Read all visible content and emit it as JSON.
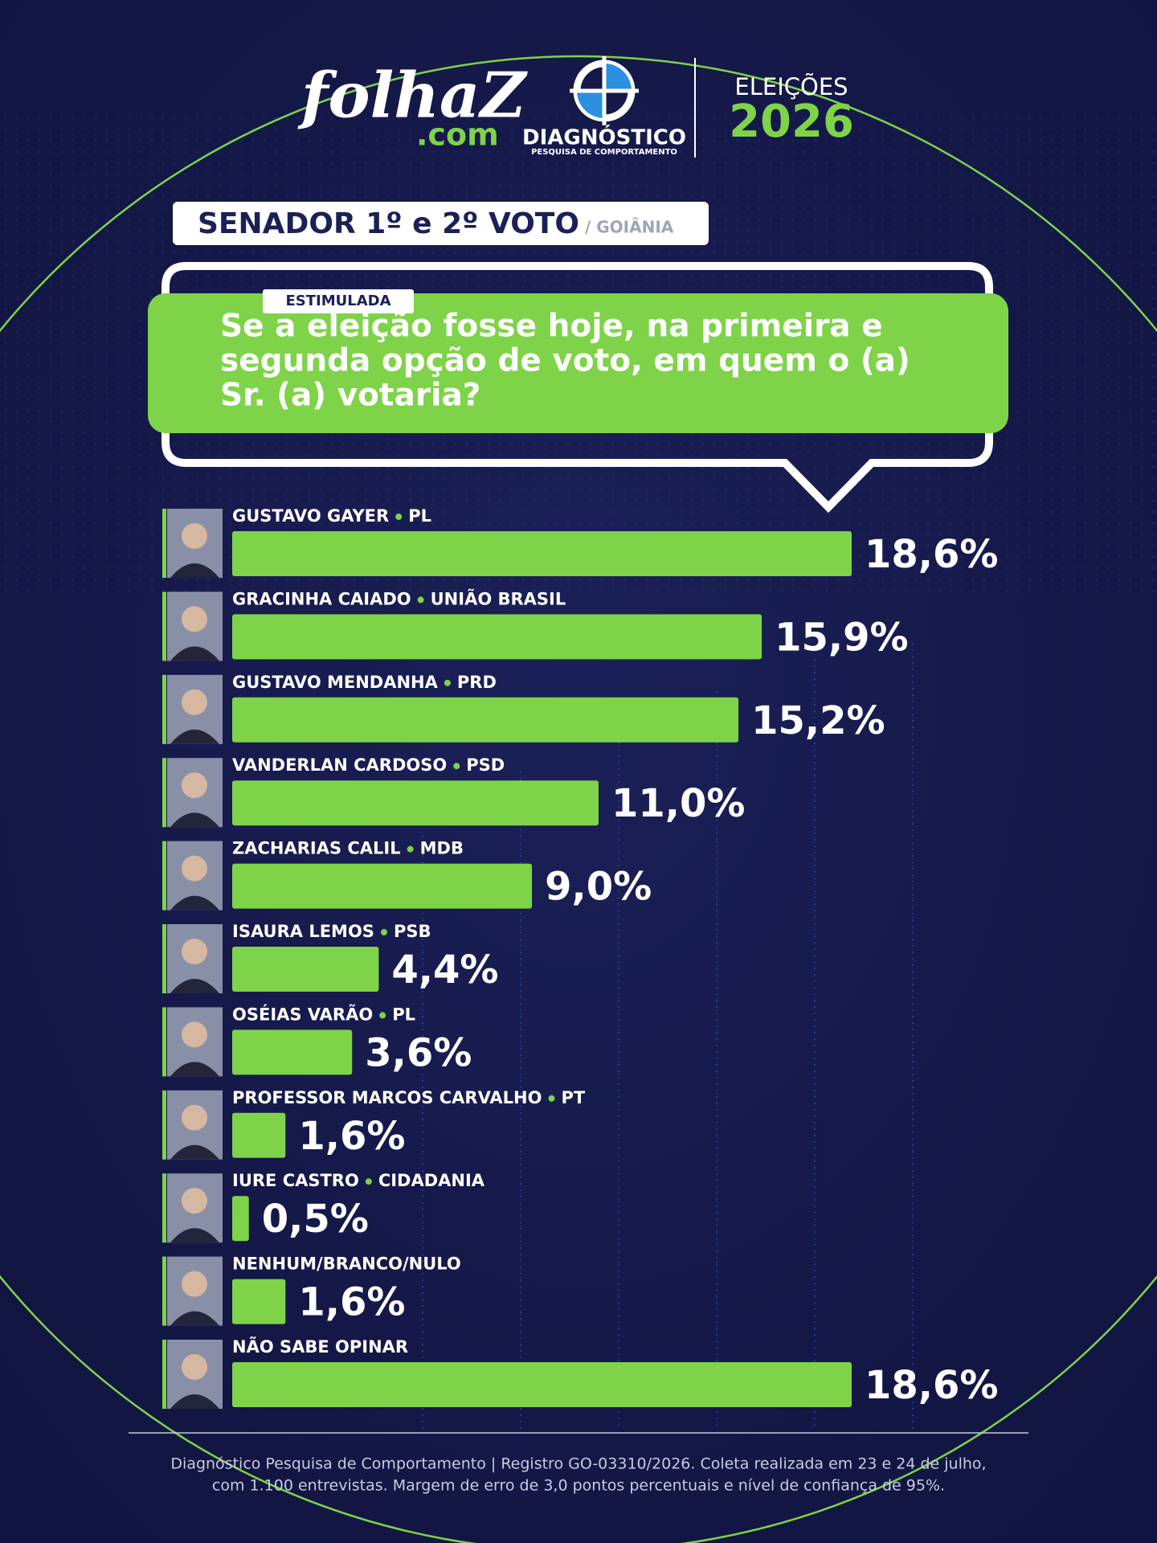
{
  "header": {
    "brand": "folhaZ",
    "brand_suffix": ".com",
    "institute": "DIAGNÓSTICO",
    "institute_sub": "PESQUISA DE COMPORTAMENTO",
    "election": "ELEIÇÕES",
    "year": "2026"
  },
  "chart_data": {
    "type": "bar",
    "title": "SENADOR 1º e 2º VOTO",
    "subtitle": "/ GOIÂNIA",
    "tag": "ESTIMULADA",
    "question": [
      "Se a eleição fosse hoje, na primeira e",
      "segunda opção de voto, em quem o (a)",
      "Sr. (a) votaria?"
    ],
    "categories": [
      "GUSTAVO GAYER",
      "GRACINHA CAIADO",
      "GUSTAVO MENDANHA",
      "VANDERLAN CARDOSO",
      "ZACHARIAS CALIL",
      "ISAURA LEMOS",
      "OSÉIAS VARÃO",
      "PROFESSOR MARCOS CARVALHO",
      "IURE CASTRO",
      "NENHUM/BRANCO/NULO",
      "NÃO SABE OPINAR"
    ],
    "parties": [
      "PL",
      "UNIÃO BRASIL",
      "PRD",
      "PSD",
      "MDB",
      "PSB",
      "PL",
      "PT",
      "CIDADANIA",
      null,
      null
    ],
    "values": [
      18.6,
      15.9,
      15.2,
      11.0,
      9.0,
      4.4,
      3.6,
      1.6,
      0.5,
      1.6,
      18.6
    ],
    "value_labels": [
      "18,6%",
      "15,9%",
      "15,2%",
      "11,0%",
      "9,0%",
      "4,4%",
      "3,6%",
      "1,6%",
      "0,5%",
      "1,6%",
      "18,6%"
    ],
    "color": "#7ed348",
    "footnote": [
      "Diagnóstico Pesquisa de Comportamento | Registro GO-03310/2026. Coleta realizada em 23 e 24 de julho,",
      "com 1.100 entrevistas. Margem de erro de 3,0 pontos percentuais e nível de confiança de 95%."
    ]
  }
}
